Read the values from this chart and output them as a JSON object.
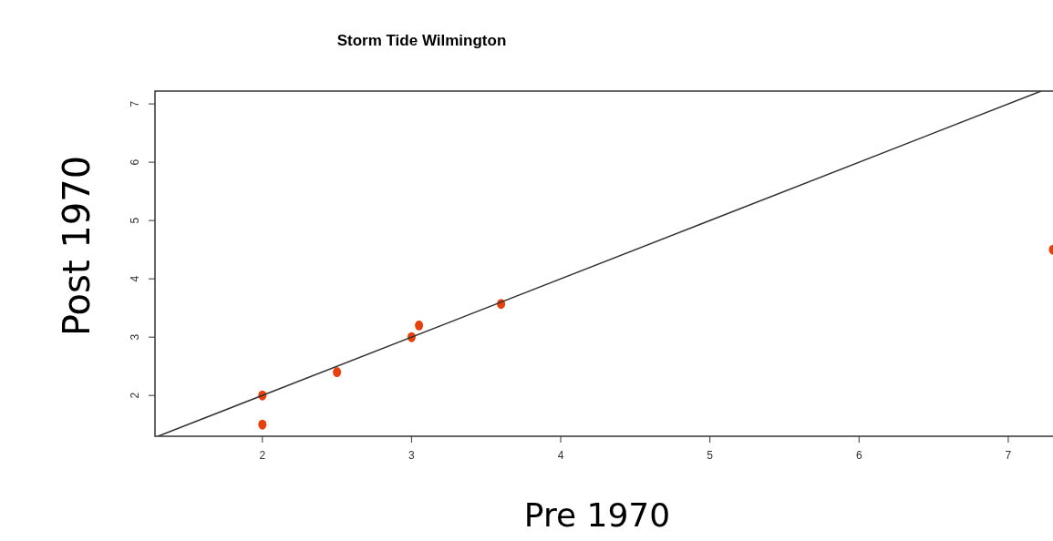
{
  "chart_data": {
    "type": "scatter",
    "title": "Storm Tide Wilmington",
    "xlabel": "Pre 1970",
    "ylabel": "Post 1970",
    "xlim": [
      1.28,
      7.3
    ],
    "ylim": [
      1.3,
      7.22
    ],
    "xticks": [
      2,
      3,
      4,
      5,
      6,
      7
    ],
    "yticks": [
      2,
      3,
      4,
      5,
      6,
      7
    ],
    "grid": false,
    "series": [
      {
        "color": "#e8400c",
        "marker": "circle",
        "x": [
          2,
          2,
          2.5,
          3,
          3.05,
          3.6,
          7.3
        ],
        "values": [
          2,
          1.5,
          2.4,
          3,
          3.2,
          3.57,
          4.5
        ]
      },
      {
        "type": "line",
        "marker": "none",
        "color": "#333333",
        "x": [
          1.3,
          7.22
        ],
        "values": [
          1.3,
          7.22
        ]
      }
    ]
  }
}
